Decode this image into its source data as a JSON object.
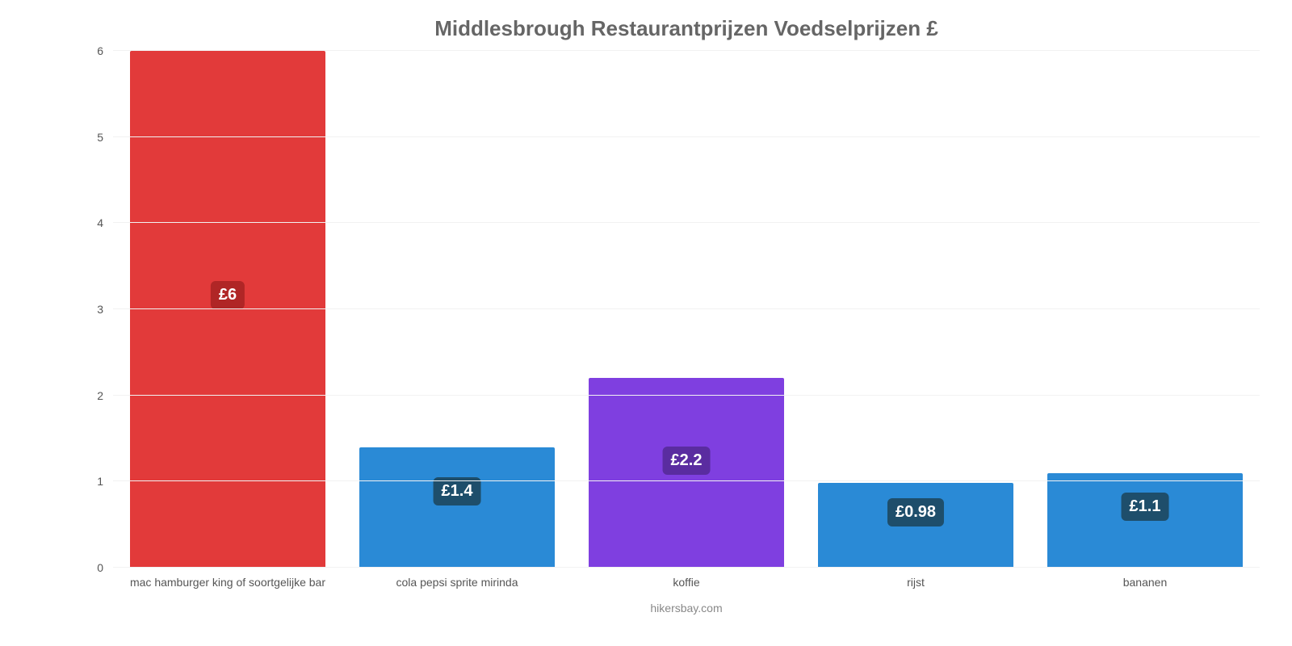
{
  "chart": {
    "type": "bar",
    "title": "Middlesbrough Restaurantprijzen Voedselprijzen £",
    "title_fontsize": 26,
    "title_color": "#666666",
    "background_color": "#ffffff",
    "grid_color": "#f2f2f2",
    "axis_color": "#888888",
    "ylim": [
      0,
      6
    ],
    "ytick_step": 1,
    "yticks": [
      0,
      1,
      2,
      3,
      4,
      5,
      6
    ],
    "bar_width_pct": 85,
    "x_label_fontsize": 14,
    "x_label_color": "#555555",
    "value_label_fontsize": 20,
    "value_label_text_color": "#ffffff",
    "value_label_radius": 6,
    "attribution": "hikersbay.com",
    "attribution_color": "#888888",
    "attribution_fontsize": 14,
    "items": [
      {
        "category": "mac hamburger king of soortgelijke bar",
        "value": 6.0,
        "display": "£6",
        "bar_color": "#e23a3a",
        "label_bg": "#b02626",
        "label_bottom_pct": 50
      },
      {
        "category": "cola pepsi sprite mirinda",
        "value": 1.4,
        "display": "£1.4",
        "bar_color": "#2a8ad6",
        "label_bg": "#1e4e6b",
        "label_bottom_pct": 12
      },
      {
        "category": "koffie",
        "value": 2.2,
        "display": "£2.2",
        "bar_color": "#7f3fe0",
        "label_bg": "#5a2ca0",
        "label_bottom_pct": 18
      },
      {
        "category": "rijst",
        "value": 0.98,
        "display": "£0.98",
        "bar_color": "#2a8ad6",
        "label_bg": "#1e4e6b",
        "label_bottom_pct": 8
      },
      {
        "category": "bananen",
        "value": 1.1,
        "display": "£1.1",
        "bar_color": "#2a8ad6",
        "label_bg": "#1e4e6b",
        "label_bottom_pct": 9
      }
    ]
  }
}
